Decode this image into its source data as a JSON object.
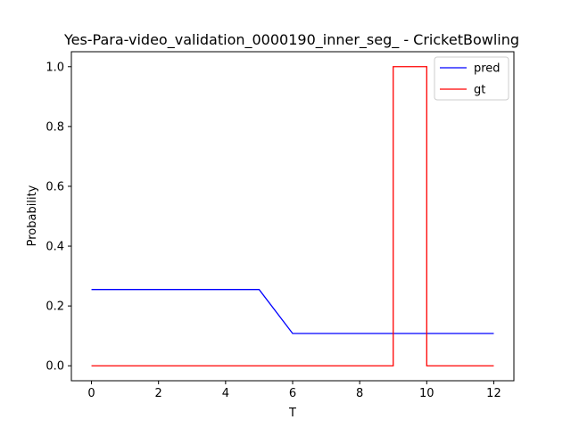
{
  "chart_data": {
    "type": "line",
    "title": "Yes-Para-video_validation_0000190_inner_seg_ - CricketBowling",
    "xlabel": "T",
    "ylabel": "Probability",
    "xlim": [
      -0.6,
      12.6
    ],
    "ylim": [
      -0.05,
      1.05
    ],
    "xticks": [
      "0",
      "2",
      "4",
      "6",
      "8",
      "10",
      "12"
    ],
    "yticks": [
      "0.0",
      "0.2",
      "0.4",
      "0.6",
      "0.8",
      "1.0"
    ],
    "grid": false,
    "legend_position": "top-right",
    "series": [
      {
        "name": "pred",
        "color": "#0000ff",
        "x": [
          0,
          1,
          2,
          3,
          4,
          5,
          6,
          7,
          8,
          9,
          10,
          11,
          12
        ],
        "y": [
          0.255,
          0.255,
          0.255,
          0.255,
          0.255,
          0.255,
          0.108,
          0.108,
          0.108,
          0.108,
          0.108,
          0.108,
          0.108
        ]
      },
      {
        "name": "gt",
        "color": "#ff0000",
        "x": [
          0,
          9,
          9,
          10,
          10,
          12
        ],
        "y": [
          0,
          0,
          1,
          1,
          0,
          0
        ]
      }
    ]
  }
}
